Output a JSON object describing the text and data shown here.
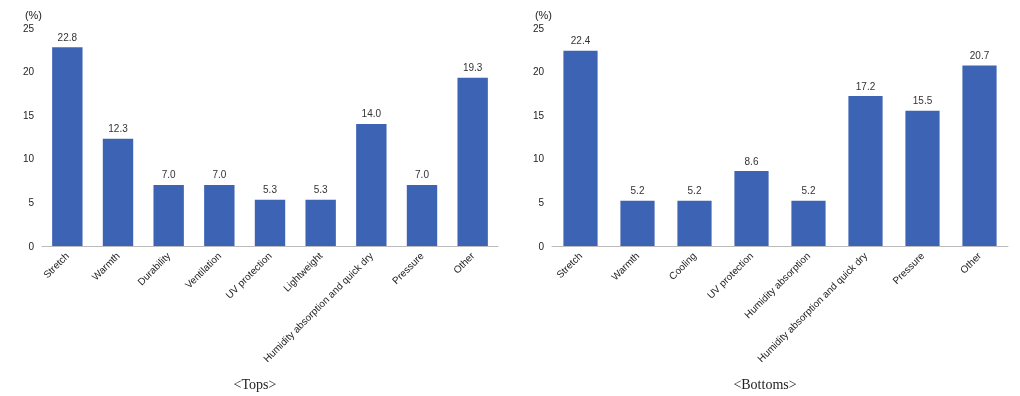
{
  "chart_data": [
    {
      "type": "bar",
      "title": "<Tops>",
      "ylabel": "(%)",
      "categories": [
        "Stretch",
        "Warmth",
        "Durability",
        "Ventilation",
        "UV protection",
        "Lightweight",
        "Humidity absorption and quick dry",
        "Pressure",
        "Other"
      ],
      "values": [
        22.8,
        12.3,
        7,
        7,
        5.3,
        5.3,
        14,
        7,
        19.3
      ],
      "value_labels": [
        "22.8",
        "12.3",
        "7.0",
        "7.0",
        "5.3",
        "5.3",
        "14.0",
        "7.0",
        "19.3"
      ],
      "color": "#3d64b4",
      "ylim": [
        0,
        25
      ],
      "yticks": [
        0,
        5,
        10,
        15,
        20,
        25
      ]
    },
    {
      "type": "bar",
      "title": "<Bottoms>",
      "ylabel": "(%)",
      "categories": [
        "Stretch",
        "Warmth",
        "Cooling",
        "UV protection",
        "Humidity absorption",
        "Humidity absorption and quick dry",
        "Pressure",
        "Other"
      ],
      "values": [
        22.4,
        5.2,
        5.2,
        8.6,
        5.2,
        17.2,
        15.5,
        20.7
      ],
      "value_labels": [
        "22.4",
        "5.2",
        "5.2",
        "8.6",
        "5.2",
        "17.2",
        "15.5",
        "20.7"
      ],
      "color": "#3d64b4",
      "ylim": [
        0,
        25
      ],
      "yticks": [
        0,
        5,
        10,
        15,
        20,
        25
      ]
    }
  ]
}
